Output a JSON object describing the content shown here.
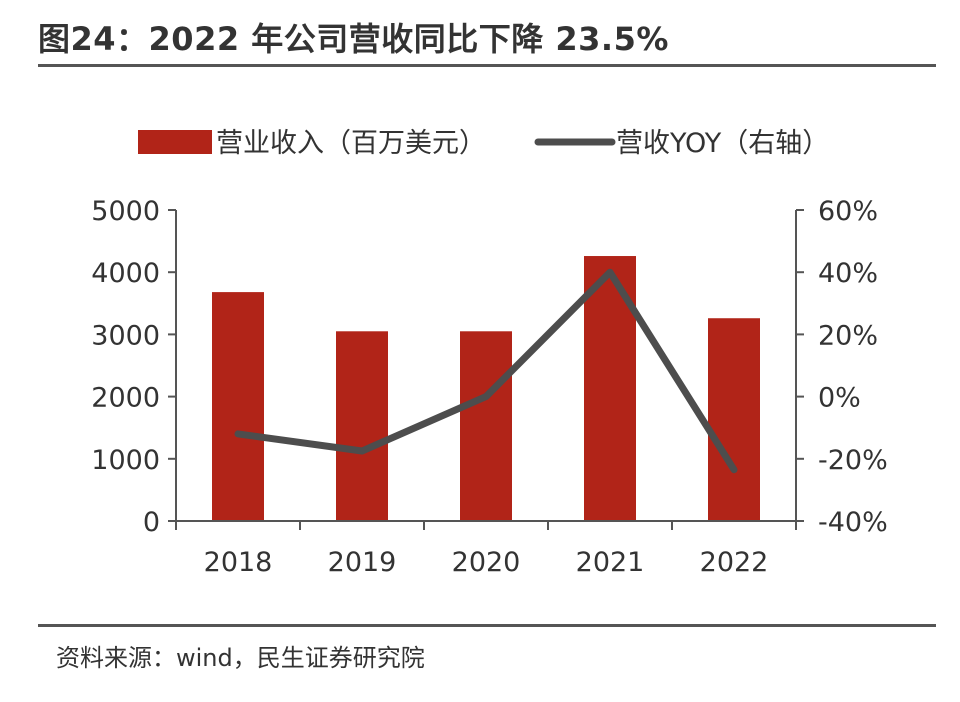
{
  "figure": {
    "title": "图24：2022 年公司营收同比下降 23.5%",
    "source": "资料来源：wind，民生证券研究院"
  },
  "chart_data": {
    "type": "bar",
    "categories": [
      "2018",
      "2019",
      "2020",
      "2021",
      "2022"
    ],
    "series": [
      {
        "name": "营业收入（百万美元）",
        "type": "bar",
        "axis": "left",
        "values": [
          3680,
          3050,
          3050,
          4260,
          3260
        ]
      },
      {
        "name": "营收YOY（右轴）",
        "type": "line",
        "axis": "right",
        "values": [
          -12,
          -17.5,
          0,
          40,
          -23.5
        ]
      }
    ],
    "y_left": {
      "min": 0,
      "max": 5000,
      "ticks": [
        "0",
        "1000",
        "2000",
        "3000",
        "4000",
        "5000"
      ]
    },
    "y_right": {
      "min": -40,
      "max": 60,
      "ticks": [
        "-40%",
        "-20%",
        "0%",
        "20%",
        "40%",
        "60%"
      ]
    },
    "legend_position": "top",
    "colors": {
      "bar": "#b12418",
      "line": "#4d4d4d",
      "axis": "#555555"
    }
  }
}
